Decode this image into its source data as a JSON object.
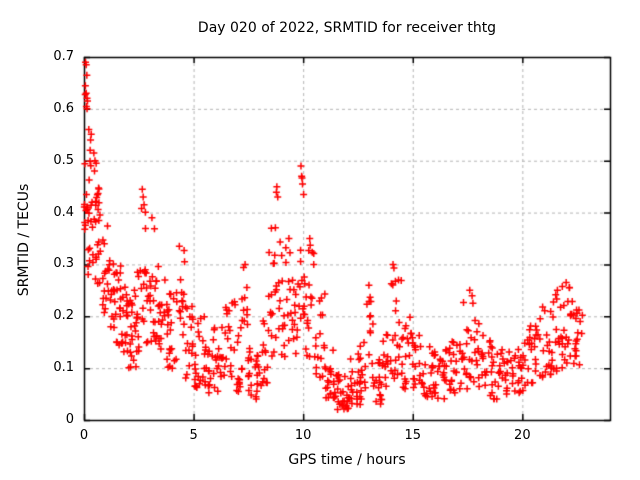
{
  "chart_data": {
    "type": "scatter",
    "title": "Day 020 of 2022, SRMTID for receiver thtg",
    "xlabel": "GPS time / hours",
    "ylabel": "SRMTID / TECUs",
    "xlim": [
      0,
      24
    ],
    "ylim": [
      0,
      0.7
    ],
    "xticks": [
      0,
      5,
      10,
      15,
      20
    ],
    "yticks": [
      0,
      0.1,
      0.2,
      0.3,
      0.4,
      0.5,
      0.6,
      0.7
    ],
    "grid": true,
    "grid_style": "dashed",
    "legend": "none",
    "series_name": "SRMTID",
    "marker": {
      "shape": "plus",
      "color": "#ff0000",
      "size": 7,
      "line_width": 1.5
    },
    "colors": {
      "background": "#ffffff",
      "axis": "#000000",
      "grid": "#b5b5b5",
      "text": "#000000",
      "points": "#ff0000"
    },
    "seed": 20,
    "density_bins": [
      [
        0.0,
        0.15,
        0.33,
        0.66,
        14
      ],
      [
        0.15,
        0.35,
        0.28,
        0.56,
        14
      ],
      [
        0.35,
        0.6,
        0.26,
        0.5,
        14
      ],
      [
        0.6,
        0.85,
        0.24,
        0.45,
        14
      ],
      [
        0.85,
        1.1,
        0.2,
        0.4,
        14
      ],
      [
        1.1,
        1.4,
        0.17,
        0.34,
        16
      ],
      [
        1.4,
        1.7,
        0.14,
        0.3,
        16
      ],
      [
        1.7,
        2.0,
        0.12,
        0.27,
        18
      ],
      [
        2.0,
        2.4,
        0.1,
        0.26,
        20
      ],
      [
        2.4,
        2.6,
        0.13,
        0.31,
        10
      ],
      [
        2.6,
        2.85,
        0.17,
        0.44,
        12
      ],
      [
        2.85,
        3.05,
        0.14,
        0.31,
        10
      ],
      [
        3.05,
        3.3,
        0.15,
        0.39,
        12
      ],
      [
        3.3,
        3.7,
        0.12,
        0.3,
        18
      ],
      [
        3.7,
        4.2,
        0.1,
        0.26,
        20
      ],
      [
        4.2,
        4.6,
        0.11,
        0.33,
        16
      ],
      [
        4.6,
        5.0,
        0.08,
        0.22,
        16
      ],
      [
        5.0,
        5.5,
        0.06,
        0.2,
        20
      ],
      [
        5.5,
        5.9,
        0.05,
        0.15,
        16
      ],
      [
        5.9,
        6.2,
        0.05,
        0.18,
        12
      ],
      [
        6.2,
        6.9,
        0.08,
        0.23,
        26
      ],
      [
        6.9,
        7.2,
        0.05,
        0.18,
        12
      ],
      [
        7.2,
        7.5,
        0.08,
        0.3,
        12
      ],
      [
        7.5,
        8.1,
        0.04,
        0.14,
        24
      ],
      [
        8.1,
        8.4,
        0.07,
        0.2,
        12
      ],
      [
        8.4,
        8.7,
        0.12,
        0.37,
        12
      ],
      [
        8.7,
        9.0,
        0.15,
        0.45,
        12
      ],
      [
        9.0,
        9.4,
        0.12,
        0.35,
        16
      ],
      [
        9.4,
        9.75,
        0.1,
        0.28,
        14
      ],
      [
        9.75,
        10.1,
        0.17,
        0.49,
        14
      ],
      [
        10.1,
        10.5,
        0.12,
        0.35,
        16
      ],
      [
        10.5,
        11.0,
        0.08,
        0.25,
        18
      ],
      [
        11.0,
        11.5,
        0.04,
        0.14,
        20
      ],
      [
        11.5,
        12.1,
        0.02,
        0.11,
        24
      ],
      [
        12.1,
        12.6,
        0.03,
        0.13,
        20
      ],
      [
        12.6,
        12.9,
        0.04,
        0.15,
        12
      ],
      [
        12.9,
        13.2,
        0.05,
        0.26,
        12
      ],
      [
        13.2,
        13.6,
        0.03,
        0.12,
        16
      ],
      [
        13.6,
        13.9,
        0.05,
        0.18,
        12
      ],
      [
        13.9,
        14.5,
        0.08,
        0.3,
        20
      ],
      [
        14.5,
        14.9,
        0.06,
        0.2,
        16
      ],
      [
        14.9,
        15.4,
        0.05,
        0.18,
        18
      ],
      [
        15.4,
        16.0,
        0.04,
        0.15,
        22
      ],
      [
        16.0,
        16.7,
        0.04,
        0.14,
        24
      ],
      [
        16.7,
        17.3,
        0.05,
        0.16,
        22
      ],
      [
        17.3,
        17.8,
        0.06,
        0.25,
        18
      ],
      [
        17.8,
        18.3,
        0.06,
        0.2,
        18
      ],
      [
        18.3,
        19.0,
        0.04,
        0.16,
        24
      ],
      [
        19.0,
        19.6,
        0.05,
        0.15,
        20
      ],
      [
        19.6,
        20.2,
        0.05,
        0.18,
        20
      ],
      [
        20.2,
        20.8,
        0.07,
        0.2,
        20
      ],
      [
        20.8,
        21.3,
        0.08,
        0.22,
        18
      ],
      [
        21.3,
        21.8,
        0.09,
        0.25,
        18
      ],
      [
        21.8,
        22.3,
        0.1,
        0.26,
        20
      ],
      [
        22.3,
        22.75,
        0.1,
        0.23,
        18
      ]
    ],
    "extreme_points": [
      [
        0.07,
        0.69
      ],
      [
        0.1,
        0.685
      ],
      [
        0.13,
        0.665
      ],
      [
        0.1,
        0.63
      ],
      [
        0.16,
        0.615
      ],
      [
        0.14,
        0.6
      ],
      [
        0.22,
        0.56
      ],
      [
        0.3,
        0.54
      ],
      [
        0.28,
        0.52
      ],
      [
        0.45,
        0.515
      ],
      [
        0.5,
        0.5
      ],
      [
        2.66,
        0.445
      ],
      [
        2.7,
        0.43
      ],
      [
        2.74,
        0.415
      ],
      [
        3.1,
        0.39
      ],
      [
        4.35,
        0.335
      ],
      [
        7.35,
        0.3
      ],
      [
        8.55,
        0.37
      ],
      [
        8.8,
        0.45
      ],
      [
        8.84,
        0.43
      ],
      [
        9.35,
        0.35
      ],
      [
        9.9,
        0.49
      ],
      [
        9.93,
        0.47
      ],
      [
        9.97,
        0.455
      ],
      [
        10.02,
        0.435
      ],
      [
        10.3,
        0.35
      ],
      [
        11.6,
        0.035
      ],
      [
        12.6,
        0.03
      ],
      [
        13.0,
        0.26
      ],
      [
        14.1,
        0.3
      ],
      [
        14.35,
        0.27
      ],
      [
        17.6,
        0.25
      ],
      [
        21.6,
        0.25
      ],
      [
        22.0,
        0.265
      ],
      [
        22.15,
        0.255
      ]
    ]
  }
}
